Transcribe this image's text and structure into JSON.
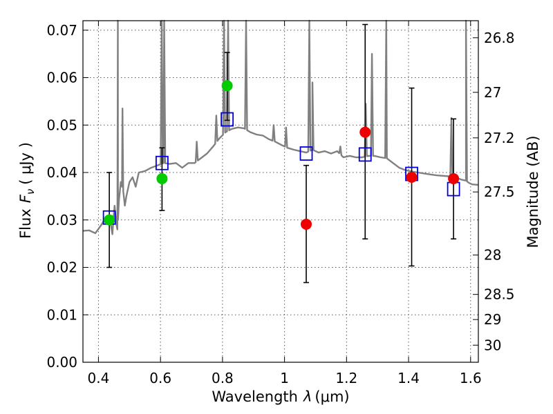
{
  "chart_data": {
    "type": "scatter",
    "xlabel": "Wavelength",
    "xlabel_symbol": "λ",
    "xlabel_unit": "(μm)",
    "ylabel": "Flux",
    "ylabel_symbol": "F",
    "ylabel_sub": "ν",
    "ylabel_unit": "( μJy )",
    "ylabel_right": "Magnitude (AB)",
    "xlim": [
      0.35,
      1.625
    ],
    "ylim": [
      0.0,
      0.072
    ],
    "grid": true,
    "x_ticks": [
      0.4,
      0.6,
      0.8,
      1.0,
      1.2,
      1.4,
      1.6
    ],
    "x_tick_labels": [
      "0.4",
      "0.6",
      "0.8",
      "1",
      "1.2",
      "1.4",
      "1.6"
    ],
    "y_ticks": [
      0.0,
      0.01,
      0.02,
      0.03,
      0.04,
      0.05,
      0.06,
      0.07
    ],
    "y_tick_labels": [
      "0.00",
      "0.01",
      "0.02",
      "0.03",
      "0.04",
      "0.05",
      "0.06",
      "0.07"
    ],
    "right_ticks": [
      {
        "label": "26.8",
        "flux": 0.0684
      },
      {
        "label": "27",
        "flux": 0.0569
      },
      {
        "label": "27.2",
        "flux": 0.0473
      },
      {
        "label": "27.5",
        "flux": 0.0359
      },
      {
        "label": "28",
        "flux": 0.0226
      },
      {
        "label": "28.5",
        "flux": 0.0143
      },
      {
        "label": "29",
        "flux": 0.009
      },
      {
        "label": "30",
        "flux": 0.0036
      }
    ],
    "series": [
      {
        "kind": "model_spectrum",
        "color": "#808080",
        "points": [
          [
            0.35,
            0.0277
          ],
          [
            0.37,
            0.0278
          ],
          [
            0.39,
            0.0272
          ],
          [
            0.41,
            0.029
          ],
          [
            0.42,
            0.0302
          ],
          [
            0.43,
            0.0301
          ],
          [
            0.44,
            0.029
          ],
          [
            0.445,
            0.027
          ],
          [
            0.448,
            0.03
          ],
          [
            0.452,
            0.033
          ],
          [
            0.455,
            0.031
          ],
          [
            0.458,
            0.029
          ],
          [
            0.461,
            0.028
          ],
          [
            0.463,
            0.03
          ],
          [
            0.466,
            0.034
          ],
          [
            0.469,
            0.036
          ],
          [
            0.472,
            0.038
          ],
          [
            0.476,
            0.037
          ],
          [
            0.48,
            0.036
          ],
          [
            0.485,
            0.033
          ],
          [
            0.49,
            0.035
          ],
          [
            0.5,
            0.038
          ],
          [
            0.51,
            0.039
          ],
          [
            0.52,
            0.037
          ],
          [
            0.53,
            0.04
          ],
          [
            0.55,
            0.0403
          ],
          [
            0.57,
            0.041
          ],
          [
            0.59,
            0.0415
          ],
          [
            0.61,
            0.042
          ],
          [
            0.63,
            0.0418
          ],
          [
            0.65,
            0.042
          ],
          [
            0.67,
            0.041
          ],
          [
            0.69,
            0.042
          ],
          [
            0.71,
            0.042
          ],
          [
            0.73,
            0.043
          ],
          [
            0.75,
            0.044
          ],
          [
            0.77,
            0.0455
          ],
          [
            0.79,
            0.0472
          ],
          [
            0.81,
            0.0485
          ],
          [
            0.83,
            0.0492
          ],
          [
            0.85,
            0.0495
          ],
          [
            0.87,
            0.0493
          ],
          [
            0.89,
            0.0485
          ],
          [
            0.91,
            0.048
          ],
          [
            0.93,
            0.0478
          ],
          [
            0.95,
            0.047
          ],
          [
            0.97,
            0.0465
          ],
          [
            0.99,
            0.0458
          ],
          [
            1.01,
            0.0452
          ],
          [
            1.03,
            0.0448
          ],
          [
            1.05,
            0.0445
          ],
          [
            1.07,
            0.0442
          ],
          [
            1.09,
            0.0448
          ],
          [
            1.11,
            0.0442
          ],
          [
            1.13,
            0.0445
          ],
          [
            1.15,
            0.044
          ],
          [
            1.17,
            0.0445
          ],
          [
            1.19,
            0.0432
          ],
          [
            1.21,
            0.0435
          ],
          [
            1.23,
            0.0432
          ],
          [
            1.25,
            0.0432
          ],
          [
            1.27,
            0.0435
          ],
          [
            1.29,
            0.0435
          ],
          [
            1.31,
            0.0432
          ],
          [
            1.33,
            0.043
          ],
          [
            1.35,
            0.042
          ],
          [
            1.37,
            0.041
          ],
          [
            1.39,
            0.0405
          ],
          [
            1.41,
            0.0402
          ],
          [
            1.43,
            0.04
          ],
          [
            1.45,
            0.0398
          ],
          [
            1.47,
            0.0396
          ],
          [
            1.49,
            0.0394
          ],
          [
            1.51,
            0.0393
          ],
          [
            1.53,
            0.0392
          ],
          [
            1.55,
            0.039
          ],
          [
            1.57,
            0.0385
          ],
          [
            1.585,
            0.0383
          ],
          [
            1.595,
            0.0378
          ],
          [
            1.605,
            0.0375
          ],
          [
            1.625,
            0.0374
          ]
        ],
        "emission_lines": [
          [
            0.4625,
            0.072
          ],
          [
            0.4775,
            0.0535
          ],
          [
            0.604,
            0.072
          ],
          [
            0.612,
            0.072
          ],
          [
            0.717,
            0.0465
          ],
          [
            0.78,
            0.052
          ],
          [
            0.805,
            0.072
          ],
          [
            0.818,
            0.072
          ],
          [
            0.876,
            0.072
          ],
          [
            0.965,
            0.05
          ],
          [
            1.005,
            0.0495
          ],
          [
            1.08,
            0.072
          ],
          [
            1.09,
            0.059
          ],
          [
            1.18,
            0.0455
          ],
          [
            1.262,
            0.0545
          ],
          [
            1.282,
            0.065
          ],
          [
            1.328,
            0.072
          ],
          [
            1.538,
            0.0515
          ],
          [
            1.585,
            0.072
          ]
        ]
      },
      {
        "kind": "model_photometry",
        "marker": "open-square",
        "color": "#0000dd",
        "points": [
          [
            0.435,
            0.0305
          ],
          [
            0.605,
            0.042
          ],
          [
            0.815,
            0.0512
          ],
          [
            1.07,
            0.044
          ],
          [
            1.26,
            0.0438
          ],
          [
            1.41,
            0.0397
          ],
          [
            1.545,
            0.0365
          ]
        ]
      },
      {
        "kind": "observed",
        "marker": "filled-circle",
        "color": "#00cc00",
        "points": [
          {
            "x": 0.435,
            "y": 0.03,
            "ylo": 0.02,
            "yhi": 0.04
          },
          {
            "x": 0.605,
            "y": 0.0387,
            "ylo": 0.032,
            "yhi": 0.0452
          },
          {
            "x": 0.815,
            "y": 0.0583,
            "ylo": 0.051,
            "yhi": 0.0653
          }
        ]
      },
      {
        "kind": "observed",
        "marker": "filled-circle",
        "color": "#ee0000",
        "points": [
          {
            "x": 1.07,
            "y": 0.0291,
            "ylo": 0.0168,
            "yhi": 0.0415
          },
          {
            "x": 1.26,
            "y": 0.0485,
            "ylo": 0.026,
            "yhi": 0.0712
          },
          {
            "x": 1.41,
            "y": 0.039,
            "ylo": 0.0203,
            "yhi": 0.0578
          },
          {
            "x": 1.545,
            "y": 0.0387,
            "ylo": 0.026,
            "yhi": 0.0513
          }
        ]
      }
    ]
  }
}
